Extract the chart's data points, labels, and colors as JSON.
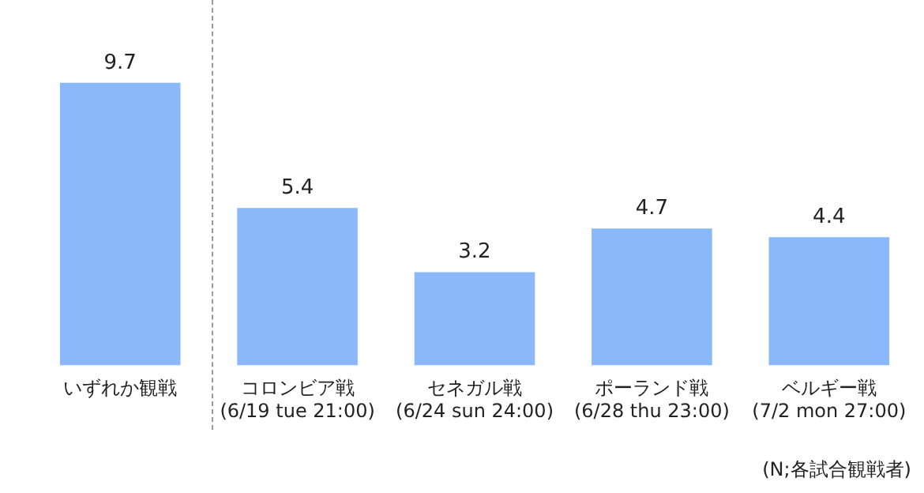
{
  "chart_data": {
    "type": "bar",
    "categories": [
      "いずれか観戦",
      "コロンビア戦\n(6/19 tue 21:00)",
      "セネガル戦\n(6/24 sun 24:00)",
      "ポーランド戦\n(6/28 thu 23:00)",
      "ベルギー戦\n(7/2 mon 27:00)"
    ],
    "values": [
      9.7,
      5.4,
      3.2,
      4.7,
      4.4
    ],
    "color": "#8ab8fb",
    "data_labels": true,
    "tick_labels": "x",
    "grid": false,
    "legend": false,
    "annotations": [
      "(N;各試合観戦者)"
    ]
  }
}
